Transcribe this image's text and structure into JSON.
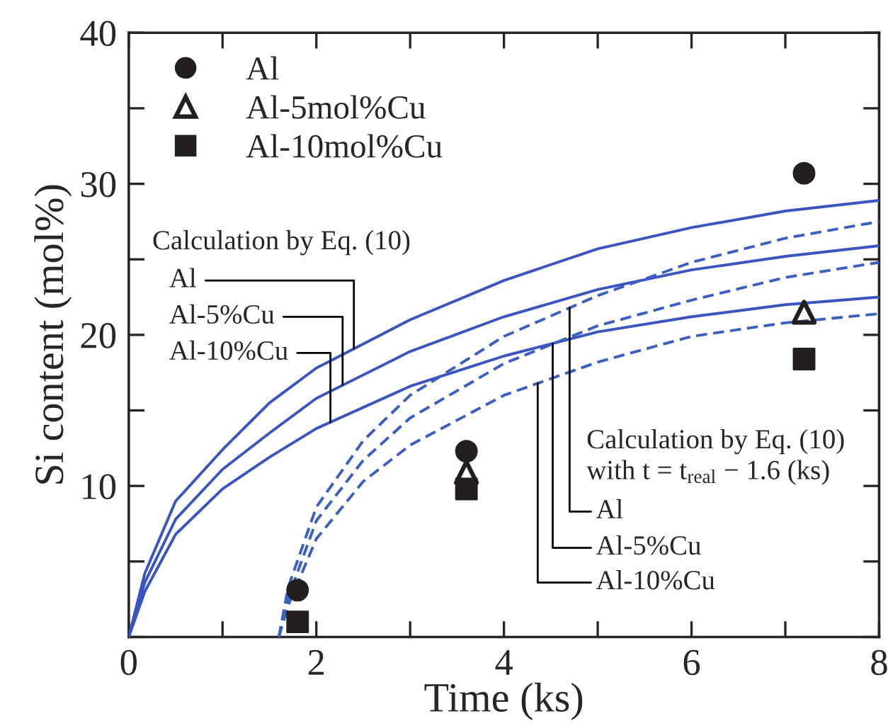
{
  "chart_data": {
    "type": "scatter",
    "xlabel": "Time (ks)",
    "ylabel": "Si content (mol%)",
    "xlim": [
      0,
      8
    ],
    "ylim": [
      0,
      40
    ],
    "xticks": [
      0,
      {
        "value": 1,
        "label": null
      },
      2,
      {
        "value": 3,
        "label": null
      },
      4,
      {
        "value": 5,
        "label": null
      },
      6,
      {
        "value": 7,
        "label": null
      },
      8
    ],
    "yticks": [
      {
        "value": 0,
        "label": null
      },
      {
        "value": 5,
        "label": null
      },
      10,
      {
        "value": 15,
        "label": null
      },
      20,
      {
        "value": 25,
        "label": null
      },
      30,
      {
        "value": 35,
        "label": null
      },
      40
    ],
    "legend": "top left",
    "grid": false,
    "series": [
      {
        "name": "Al",
        "marker": "circle",
        "color": "#231f20",
        "x": [
          1.8,
          3.6,
          7.2
        ],
        "values": [
          3.1,
          12.3,
          30.7
        ]
      },
      {
        "name": "Al-5mol%Cu",
        "marker": "triangle",
        "color": "#231f20",
        "x": [
          3.6,
          7.2
        ],
        "values": [
          10.9,
          21.5
        ]
      },
      {
        "name": "Al-10mol%Cu",
        "marker": "square",
        "color": "#231f20",
        "x": [
          1.8,
          3.6,
          7.2
        ],
        "values": [
          1.0,
          9.8,
          18.4
        ]
      },
      {
        "type": "line",
        "line_style": "solid",
        "color": "#3a55c0",
        "x": [
          0,
          0.17,
          0.5,
          1,
          1.5,
          2,
          3,
          4,
          5,
          6,
          7,
          8
        ],
        "values": [
          0,
          4.2,
          9.0,
          12.4,
          15.5,
          17.8,
          21.0,
          23.6,
          25.7,
          27.1,
          28.2,
          28.9
        ]
      },
      {
        "type": "line",
        "line_style": "solid",
        "color": "#3a55c0",
        "x": [
          0,
          0.17,
          0.5,
          1,
          1.5,
          2,
          3,
          4,
          5,
          6,
          7,
          8
        ],
        "values": [
          0,
          3.6,
          7.8,
          11.1,
          13.5,
          15.8,
          18.9,
          21.2,
          23.0,
          24.3,
          25.2,
          25.9
        ]
      },
      {
        "type": "line",
        "line_style": "solid",
        "color": "#3a55c0",
        "x": [
          0,
          0.17,
          0.5,
          1,
          1.5,
          2,
          3,
          4,
          5,
          6,
          7,
          8
        ],
        "values": [
          0,
          3.0,
          6.8,
          9.8,
          11.9,
          13.8,
          16.6,
          18.6,
          20.2,
          21.2,
          22.0,
          22.5
        ]
      },
      {
        "type": "line",
        "line_style": "dashed",
        "color": "#3a5fc0",
        "x": [
          1.6,
          1.7,
          2,
          2.5,
          3,
          4,
          5,
          6,
          7,
          8
        ],
        "values": [
          0,
          3.3,
          8.6,
          13.0,
          16.0,
          19.9,
          22.6,
          24.8,
          26.4,
          27.5
        ]
      },
      {
        "type": "line",
        "line_style": "dashed",
        "color": "#3a5fc0",
        "x": [
          1.6,
          1.7,
          2,
          2.5,
          3,
          4,
          5,
          6,
          7,
          8
        ],
        "values": [
          0,
          2.6,
          7.7,
          11.7,
          14.5,
          18.1,
          20.6,
          22.3,
          23.8,
          24.8
        ]
      },
      {
        "type": "line",
        "line_style": "dashed",
        "color": "#3a5fc0",
        "x": [
          1.6,
          1.7,
          2,
          2.5,
          3,
          4,
          5,
          6,
          7,
          8
        ],
        "values": [
          0,
          2.1,
          6.5,
          10.3,
          12.7,
          16.0,
          18.2,
          19.9,
          20.8,
          21.4
        ]
      }
    ],
    "annotations": [
      "Calculation by Eq. (10)",
      {
        "text": "Al",
        "x": 2.4,
        "y": 19.1
      },
      {
        "text": "Al-5%Cu",
        "x": 2.28,
        "y": 16.7
      },
      {
        "text": "Al-10%Cu",
        "x": 2.15,
        "y": 14.2
      },
      "Calculation by Eq. (10)\nwith t = t$_{real}$ − 1.6 (ks)",
      {
        "text": "Al",
        "x": 4.7,
        "y": 21.8
      },
      {
        "text": "Al-5%Cu",
        "x": 4.52,
        "y": 19.4
      },
      {
        "text": "Al-10%Cu",
        "x": 4.36,
        "y": 16.8
      }
    ]
  }
}
